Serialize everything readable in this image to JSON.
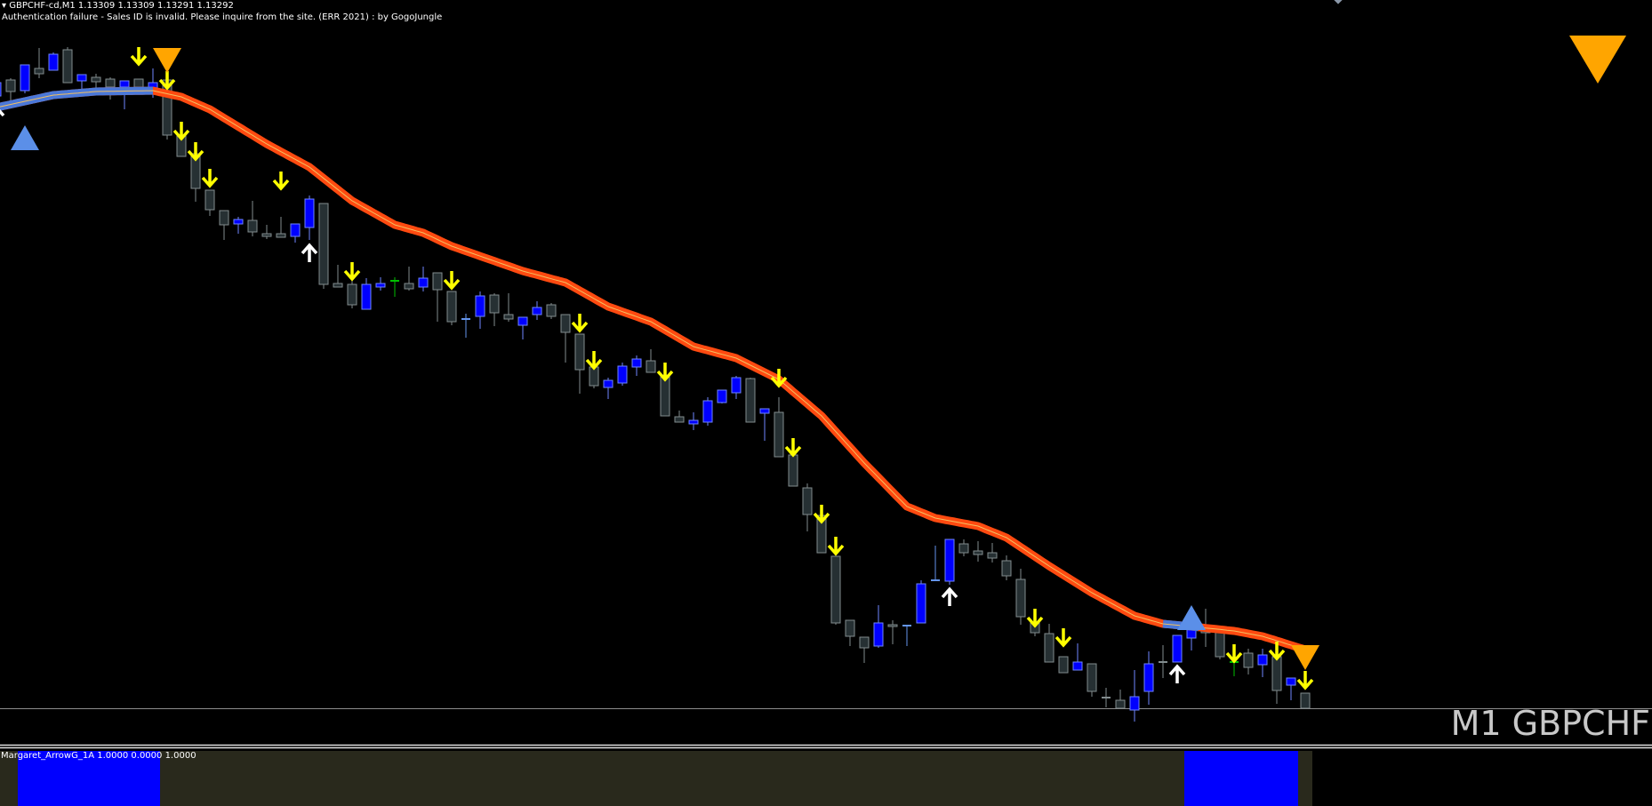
{
  "header": {
    "collapse_icon": "triangle-down",
    "symbol_line": "GBPCHF-cd,M1  1.13309 1.13309 1.13291 1.13292",
    "message": "Authentication failure - Sales ID is invalid. Please inquire from the site. (ERR 2021) : by GogoJungle"
  },
  "timeframe_label": "M1 GBPCHF",
  "indicator": {
    "label": "Margaret_ArrowG_1A 1.0000 0.0000 1.0000",
    "blue_ranges": [
      [
        2,
        11
      ],
      [
        84,
        91
      ]
    ],
    "last_index": 92,
    "colors": {
      "bar": "#0000ff",
      "background": "#29291c"
    }
  },
  "colors": {
    "background": "#000000",
    "bull_fill": "#0000ff",
    "bull_line": "#6f86ff",
    "bear_fill": "#263033",
    "bear_line": "#828c8e",
    "ma_bear": "#ff4a10",
    "ma_bull": "#4b78d8",
    "ma_core": "#f3c060",
    "arrow_sell": "#ffff00",
    "arrow_buy": "#ffffff",
    "triangle_buy": "#5b8fe8",
    "triangle_sell": "#ffa500",
    "separator": "#8c8c8c"
  },
  "chart_data": {
    "type": "candlestick",
    "symbol": "GBPCHF-cd",
    "timeframe": "M1",
    "ohlc": [
      [
        1.13981,
        1.13998,
        1.13979,
        1.13996
      ],
      [
        1.13999,
        1.14001,
        1.13972,
        1.13986
      ],
      [
        1.13987,
        1.14016,
        1.13984,
        1.14016
      ],
      [
        1.14012,
        1.14035,
        1.14001,
        1.14006
      ],
      [
        1.1401,
        1.1403,
        1.1401,
        1.14028
      ],
      [
        1.14033,
        1.14036,
        1.13996,
        1.13996
      ],
      [
        1.13998,
        1.14005,
        1.13989,
        1.14005
      ],
      [
        1.14002,
        1.14006,
        1.13989,
        1.13997
      ],
      [
        1.14,
        1.14002,
        1.13977,
        1.13991
      ],
      [
        1.13991,
        1.13998,
        1.13966,
        1.13998
      ],
      [
        1.14,
        1.14,
        1.13991,
        1.13991
      ],
      [
        1.13989,
        1.14012,
        1.13979,
        1.13996
      ],
      [
        1.13999,
        1.13999,
        1.13932,
        1.13937
      ],
      [
        1.13937,
        1.13937,
        1.13913,
        1.13913
      ],
      [
        1.13916,
        1.13916,
        1.13862,
        1.13877
      ],
      [
        1.13875,
        1.13875,
        1.13846,
        1.13853
      ],
      [
        1.13852,
        1.13852,
        1.13819,
        1.13836
      ],
      [
        1.13837,
        1.13845,
        1.13826,
        1.13842
      ],
      [
        1.13841,
        1.13863,
        1.13823,
        1.13828
      ],
      [
        1.13826,
        1.13836,
        1.1382,
        1.13823
      ],
      [
        1.13826,
        1.13845,
        1.13822,
        1.13822
      ],
      [
        1.13823,
        1.13837,
        1.13816,
        1.13837
      ],
      [
        1.13833,
        1.13869,
        1.13819,
        1.13865
      ],
      [
        1.1386,
        1.1386,
        1.13764,
        1.13769
      ],
      [
        1.1377,
        1.13791,
        1.13766,
        1.13766
      ],
      [
        1.13769,
        1.13776,
        1.13742,
        1.13746
      ],
      [
        1.13741,
        1.13776,
        1.13741,
        1.13769
      ],
      [
        1.13766,
        1.13777,
        1.13762,
        1.1377
      ],
      [
        1.13773,
        1.13777,
        1.13755,
        1.13773
      ],
      [
        1.1377,
        1.13789,
        1.13762,
        1.13764
      ],
      [
        1.13766,
        1.13789,
        1.13761,
        1.13776
      ],
      [
        1.13782,
        1.13782,
        1.13727,
        1.13763
      ],
      [
        1.13761,
        1.13761,
        1.13723,
        1.13727
      ],
      [
        1.1373,
        1.13736,
        1.13709,
        1.13731
      ],
      [
        1.13733,
        1.13761,
        1.13719,
        1.13756
      ],
      [
        1.13757,
        1.13759,
        1.13722,
        1.13737
      ],
      [
        1.13735,
        1.13759,
        1.13727,
        1.1373
      ],
      [
        1.13723,
        1.13732,
        1.13707,
        1.13732
      ],
      [
        1.13735,
        1.1375,
        1.13729,
        1.13743
      ],
      [
        1.13746,
        1.13748,
        1.1373,
        1.13733
      ],
      [
        1.13735,
        1.13735,
        1.13681,
        1.13715
      ],
      [
        1.13713,
        1.13713,
        1.13646,
        1.13673
      ],
      [
        1.13676,
        1.13676,
        1.13652,
        1.13655
      ],
      [
        1.13653,
        1.13664,
        1.1364,
        1.13661
      ],
      [
        1.13658,
        1.13681,
        1.13655,
        1.13677
      ],
      [
        1.13676,
        1.13689,
        1.13666,
        1.13685
      ],
      [
        1.13683,
        1.13696,
        1.1367,
        1.1367
      ],
      [
        1.13667,
        1.13667,
        1.13621,
        1.13621
      ],
      [
        1.1362,
        1.13627,
        1.13614,
        1.13614
      ],
      [
        1.13612,
        1.13625,
        1.13605,
        1.13616
      ],
      [
        1.13614,
        1.13642,
        1.1361,
        1.13638
      ],
      [
        1.13636,
        1.1365,
        1.13635,
        1.1365
      ],
      [
        1.13647,
        1.13666,
        1.1364,
        1.13664
      ],
      [
        1.13663,
        1.13664,
        1.13614,
        1.13614
      ],
      [
        1.13624,
        1.13629,
        1.13593,
        1.13629
      ],
      [
        1.13625,
        1.13642,
        1.13575,
        1.13575
      ],
      [
        1.13577,
        1.13577,
        1.13542,
        1.13542
      ],
      [
        1.1354,
        1.13545,
        1.13491,
        1.1351
      ],
      [
        1.13509,
        1.13509,
        1.13467,
        1.13467
      ],
      [
        1.13463,
        1.13463,
        1.13386,
        1.13388
      ],
      [
        1.13391,
        1.13391,
        1.13362,
        1.13373
      ],
      [
        1.13372,
        1.13372,
        1.13343,
        1.1336
      ],
      [
        1.13362,
        1.13408,
        1.1336,
        1.13388
      ],
      [
        1.13386,
        1.13391,
        1.13364,
        1.13384
      ],
      [
        1.13385,
        1.13386,
        1.13362,
        1.13386
      ],
      [
        1.13388,
        1.13436,
        1.13388,
        1.13432
      ],
      [
        1.13436,
        1.13475,
        1.13436,
        1.13437
      ],
      [
        1.13435,
        1.13482,
        1.13431,
        1.13482
      ],
      [
        1.13477,
        1.13482,
        1.13463,
        1.13467
      ],
      [
        1.13469,
        1.1348,
        1.13457,
        1.13465
      ],
      [
        1.13467,
        1.13478,
        1.13456,
        1.13461
      ],
      [
        1.13458,
        1.13464,
        1.13436,
        1.13441
      ],
      [
        1.13437,
        1.13449,
        1.13386,
        1.13395
      ],
      [
        1.13389,
        1.13389,
        1.13373,
        1.13377
      ],
      [
        1.13376,
        1.13387,
        1.13344,
        1.13344
      ],
      [
        1.1335,
        1.1335,
        1.13332,
        1.13332
      ],
      [
        1.13335,
        1.13365,
        1.13335,
        1.13344
      ],
      [
        1.13342,
        1.13342,
        1.13305,
        1.13311
      ],
      [
        1.13304,
        1.13315,
        1.13293,
        1.13304
      ],
      [
        1.13301,
        1.13313,
        1.13292,
        1.13292
      ],
      [
        1.1329,
        1.13335,
        1.13277,
        1.13305
      ],
      [
        1.13311,
        1.13356,
        1.13296,
        1.13342
      ],
      [
        1.13344,
        1.13363,
        1.13326,
        1.13343
      ],
      [
        1.13344,
        1.13374,
        1.13344,
        1.13374
      ],
      [
        1.13371,
        1.13382,
        1.13357,
        1.13382
      ],
      [
        1.13384,
        1.13404,
        1.13361,
        1.13377
      ],
      [
        1.13379,
        1.13379,
        1.13347,
        1.1335
      ],
      [
        1.13344,
        1.13344,
        1.13328,
        1.13344
      ],
      [
        1.13354,
        1.13359,
        1.1333,
        1.13338
      ],
      [
        1.13341,
        1.13359,
        1.13327,
        1.13352
      ],
      [
        1.1335,
        1.1335,
        1.13297,
        1.13312
      ],
      [
        1.13318,
        1.13326,
        1.13301,
        1.13326
      ],
      [
        1.13309,
        1.13309,
        1.13291,
        1.13292
      ]
    ],
    "doji_colors": {
      "28": "#00c000",
      "33": "#6495ed",
      "64": "#6495ed",
      "66": "#6495ed",
      "78": "#828c8e",
      "82": "#828c8e",
      "87": "#00c000"
    },
    "moving_average": {
      "points": [
        [
          0,
          1.13968
        ],
        [
          4,
          1.13982
        ],
        [
          7,
          1.13986
        ],
        [
          11,
          1.13987
        ],
        [
          13,
          1.1398
        ],
        [
          15,
          1.13966
        ],
        [
          19,
          1.13927
        ],
        [
          22,
          1.13901
        ],
        [
          25,
          1.13863
        ],
        [
          28,
          1.13836
        ],
        [
          30,
          1.13827
        ],
        [
          32,
          1.13812
        ],
        [
          37,
          1.13784
        ],
        [
          40,
          1.13771
        ],
        [
          43,
          1.13744
        ],
        [
          46,
          1.13727
        ],
        [
          49,
          1.13699
        ],
        [
          52,
          1.13686
        ],
        [
          55,
          1.13662
        ],
        [
          58,
          1.13621
        ],
        [
          61,
          1.13568
        ],
        [
          64,
          1.13519
        ],
        [
          66,
          1.13506
        ],
        [
          69,
          1.13497
        ],
        [
          71,
          1.13484
        ],
        [
          74,
          1.13452
        ],
        [
          77,
          1.13422
        ],
        [
          80,
          1.13396
        ],
        [
          82,
          1.13387
        ],
        [
          84,
          1.13384
        ],
        [
          87,
          1.13379
        ],
        [
          89,
          1.13373
        ],
        [
          92,
          1.13358
        ]
      ],
      "bull_ranges": [
        [
          0,
          11.2
        ],
        [
          82,
          84.5
        ]
      ]
    },
    "sell_arrows": [
      [
        10,
        1.14026
      ],
      [
        12,
        1.13999
      ],
      [
        13,
        1.13942
      ],
      [
        14,
        1.13919
      ],
      [
        15,
        1.13889
      ],
      [
        20,
        1.13886
      ],
      [
        25,
        1.13784
      ],
      [
        32,
        1.13774
      ],
      [
        41,
        1.13726
      ],
      [
        42,
        1.13684
      ],
      [
        47,
        1.13671
      ],
      [
        55,
        1.13664
      ],
      [
        56,
        1.13586
      ],
      [
        58,
        1.13511
      ],
      [
        59,
        1.13475
      ],
      [
        73,
        1.13394
      ],
      [
        75,
        1.13372
      ],
      [
        87,
        1.13354
      ],
      [
        90,
        1.13357
      ],
      [
        92,
        1.13324
      ]
    ],
    "buy_arrows": [
      [
        0,
        1.13959
      ],
      [
        22,
        1.13804
      ],
      [
        67,
        1.13417
      ],
      [
        83,
        1.1333
      ]
    ],
    "buy_triangles": [
      [
        2,
        1.13934
      ],
      [
        84,
        1.13394
      ]
    ],
    "sell_triangles": [
      [
        12,
        1.14021
      ],
      [
        92,
        1.13349
      ]
    ]
  }
}
